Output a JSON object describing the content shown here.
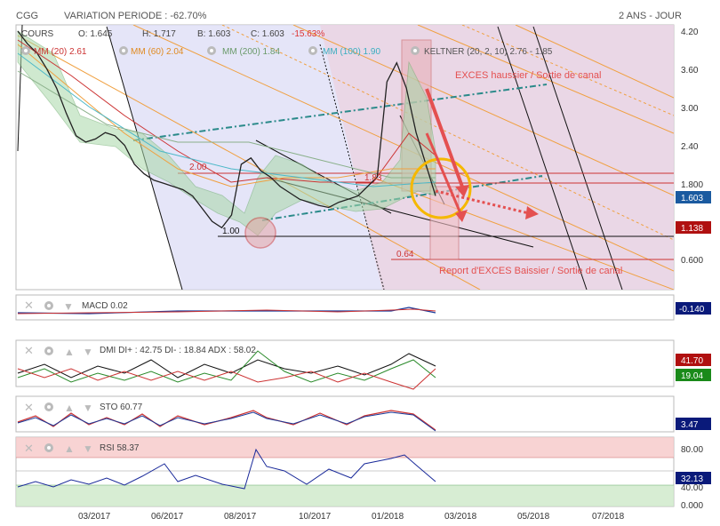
{
  "header": {
    "symbol": "CGG",
    "variation": "VARIATION PERIODE : -62.70%",
    "period": "2 ANS - JOUR"
  },
  "legend": {
    "cours": "COURS",
    "open": "O: 1.645",
    "high": "H: 1.717",
    "low": "B: 1.603",
    "close": "C: 1.603",
    "change": "-15.63%",
    "mm20": "MM (20) 2.61",
    "mm60": "MM (60) 2.04",
    "mm200": "MM (200) 1.84",
    "mm100": "MM (100) 1.90",
    "keltner": "KELTNER (20, 2, 10) 2.76 - 1.85"
  },
  "annotations": {
    "exces_haussier": "EXCES haussier / Sortie de canal",
    "exces_baissier": "Report d'EXCES Baissier / Sortie de canal",
    "lvl_200": "2.00",
    "lvl_183": "1.83",
    "lvl_100": "1.00",
    "lvl_064": "0.64"
  },
  "price_badges": {
    "last": "1.603",
    "level": "1.138"
  },
  "panels": {
    "macd": {
      "label": "MACD 0.02",
      "badge": "-0.140"
    },
    "dmi": {
      "label": "DMI DI+ : 42.75 DI- : 18.84 ADX : 58.02",
      "badge1": "41.70",
      "badge2": "19.04"
    },
    "sto": {
      "label": "STO 60.77",
      "badge": "3.47"
    },
    "rsi": {
      "label": "RSI 58.37",
      "badge": "32.13"
    }
  },
  "chart_data": {
    "type": "line",
    "x_ticks": [
      "03/2017",
      "06/2017",
      "08/2017",
      "10/2017",
      "01/2018",
      "03/2018",
      "05/2018",
      "07/2018"
    ],
    "y_ticks": [
      "4.20",
      "3.60",
      "3.00",
      "2.40",
      "1.800",
      "0.600"
    ],
    "rsi_ticks": [
      "80.00",
      "40.00",
      "0.000"
    ],
    "price_path": [
      4.2,
      4.0,
      3.85,
      3.6,
      3.3,
      2.9,
      2.55,
      2.45,
      2.5,
      2.6,
      2.55,
      2.4,
      2.1,
      1.95,
      1.85,
      1.8,
      1.75,
      1.7,
      1.6,
      1.4,
      1.2,
      1.1,
      1.3,
      2.1,
      2.2,
      2.0,
      1.9,
      1.75,
      1.65,
      1.55,
      1.5,
      1.45,
      1.42,
      1.5,
      1.55,
      1.6,
      1.75,
      1.9,
      3.4,
      3.7,
      3.3,
      2.6,
      2.1,
      1.603
    ]
  }
}
